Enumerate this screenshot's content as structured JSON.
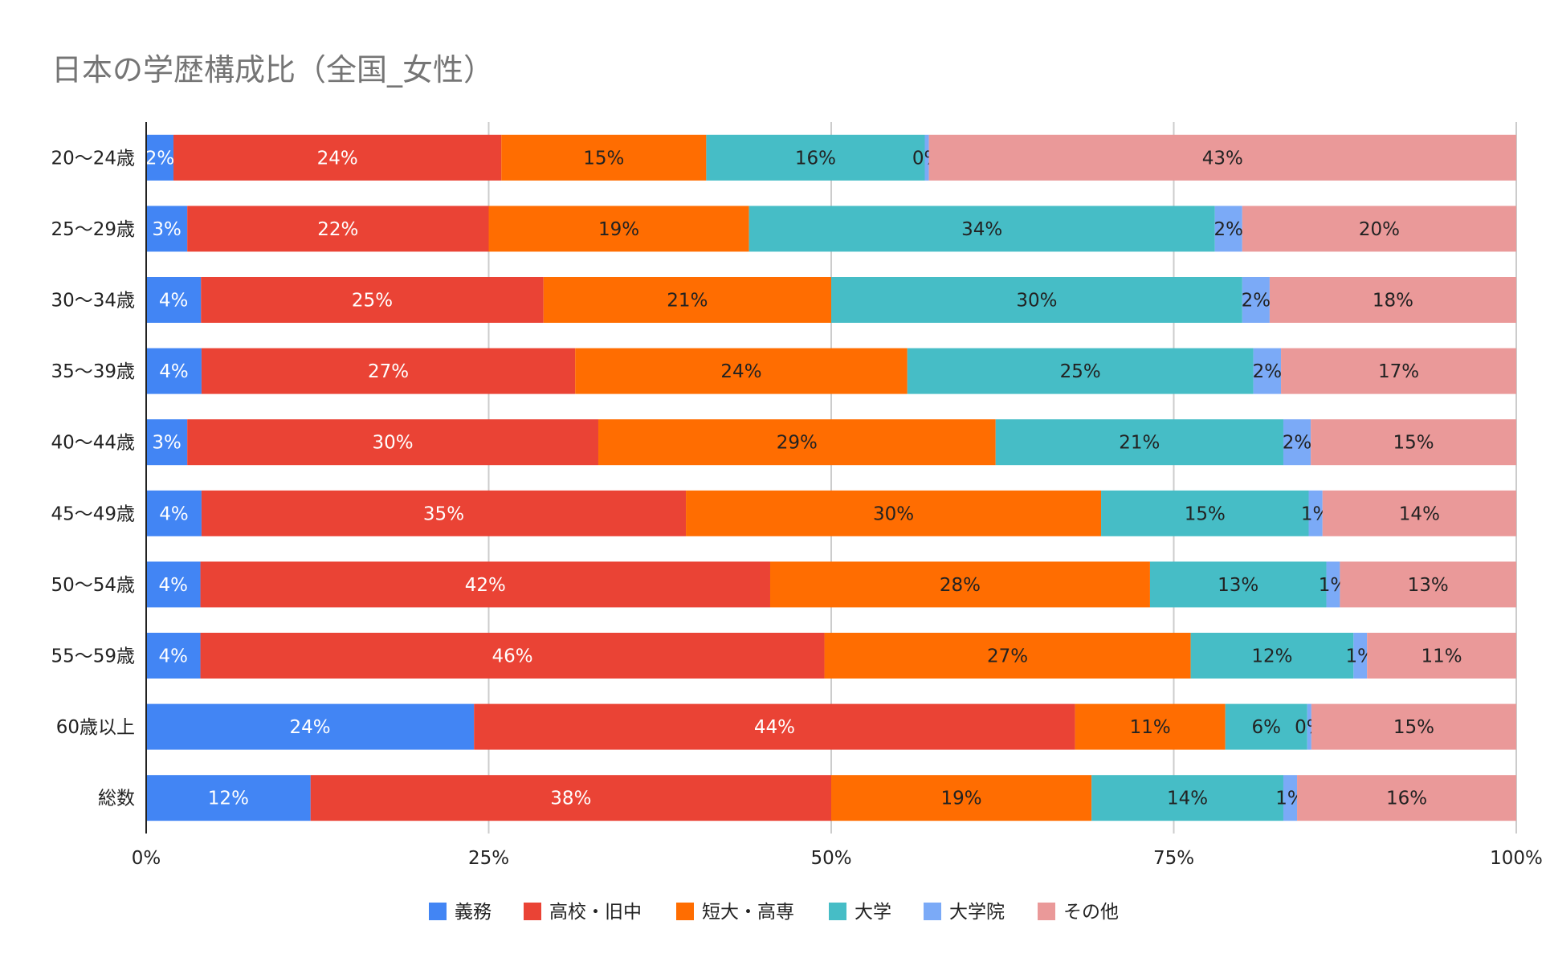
{
  "chart_data": {
    "type": "bar",
    "orientation": "horizontal",
    "stacked": "percent",
    "title": "日本の学歴構成比（全国_女性）",
    "categories": [
      "20〜24歳",
      "25〜29歳",
      "30〜34歳",
      "35〜39歳",
      "40〜44歳",
      "45〜49歳",
      "50〜54歳",
      "55〜59歳",
      "60歳以上",
      "総数"
    ],
    "xticks": [
      "0%",
      "25%",
      "50%",
      "75%",
      "100%"
    ],
    "xlim": [
      0,
      100
    ],
    "grid": true,
    "legend_position": "bottom",
    "series": [
      {
        "name": "義務",
        "color": "#4285f4",
        "label_color": "#ffffff",
        "values": [
          2,
          3,
          4,
          4,
          3,
          4,
          4,
          4,
          24,
          12
        ],
        "labels": [
          "2%",
          "3%",
          "4%",
          "4%",
          "3%",
          "4%",
          "4%",
          "4%",
          "24%",
          "12%"
        ]
      },
      {
        "name": "高校・旧中",
        "color": "#ea4335",
        "label_color": "#ffffff",
        "values": [
          24,
          22,
          25,
          27,
          30,
          35,
          42,
          46,
          44,
          38
        ],
        "labels": [
          "24%",
          "22%",
          "25%",
          "27%",
          "30%",
          "35%",
          "42%",
          "46%",
          "44%",
          "38%"
        ]
      },
      {
        "name": "短大・高専",
        "color": "#ff6d01",
        "label_color": "#222222",
        "values": [
          15,
          19,
          21,
          24,
          29,
          30,
          28,
          27,
          11,
          19
        ],
        "labels": [
          "15%",
          "19%",
          "21%",
          "24%",
          "29%",
          "30%",
          "28%",
          "27%",
          "11%",
          "19%"
        ]
      },
      {
        "name": "大学",
        "color": "#46bdc6",
        "label_color": "#222222",
        "values": [
          16,
          34,
          30,
          25,
          21,
          15,
          13,
          12,
          6,
          14
        ],
        "labels": [
          "16%",
          "34%",
          "30%",
          "25%",
          "21%",
          "15%",
          "13%",
          "12%",
          "6%",
          "14%"
        ]
      },
      {
        "name": "大学院",
        "color": "#7baaf7",
        "label_color": "#222222",
        "values": [
          0.3,
          2,
          2,
          2,
          2,
          1,
          1,
          1,
          0.3,
          1
        ],
        "labels": [
          "0%",
          "2%",
          "2%",
          "2%",
          "2%",
          "1%",
          "1%",
          "1%",
          "0%",
          "1%"
        ]
      },
      {
        "name": "その他",
        "color": "#ea9999",
        "label_color": "#222222",
        "values": [
          43,
          20,
          18,
          17,
          15,
          14,
          13,
          11,
          15,
          16
        ],
        "labels": [
          "43%",
          "20%",
          "18%",
          "17%",
          "15%",
          "14%",
          "13%",
          "11%",
          "15%",
          "16%"
        ]
      }
    ]
  }
}
